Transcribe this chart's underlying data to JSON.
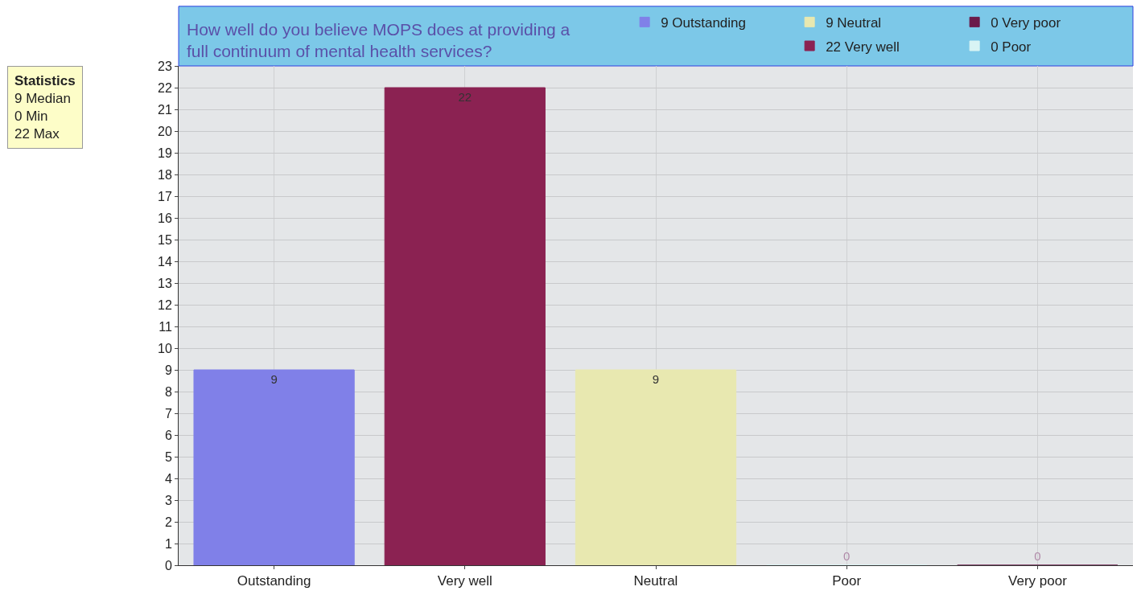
{
  "chart_data": {
    "type": "bar",
    "title": "How well do you believe MOPS does at providing a\nfull continuum of mental health services?",
    "categories": [
      "Outstanding",
      "Very well",
      "Neutral",
      "Poor",
      "Very poor"
    ],
    "series": [
      {
        "name": "9 Outstanding",
        "color": "#8080e8",
        "values": [
          9,
          null,
          null,
          null,
          null
        ]
      },
      {
        "name": "22 Very well",
        "color": "#8b2252",
        "values": [
          null,
          22,
          null,
          null,
          null
        ]
      },
      {
        "name": "9 Neutral",
        "color": "#e8e8b0",
        "values": [
          null,
          null,
          9,
          null,
          null
        ]
      },
      {
        "name": "0 Poor",
        "color": "#d8f4f4",
        "values": [
          null,
          null,
          null,
          0,
          null
        ]
      },
      {
        "name": "0 Very poor",
        "color": "#6b1a4a",
        "values": [
          null,
          null,
          null,
          null,
          0
        ]
      }
    ],
    "ylim": [
      0,
      23
    ],
    "yticks": [
      0,
      1,
      2,
      3,
      4,
      5,
      6,
      7,
      8,
      9,
      10,
      11,
      12,
      13,
      14,
      15,
      16,
      17,
      18,
      19,
      20,
      21,
      22,
      23
    ],
    "grid": true,
    "data_labels": true,
    "legend": "top right",
    "annotations": [
      "Statistics",
      "9 Median",
      "0 Min",
      "22 Max"
    ]
  }
}
